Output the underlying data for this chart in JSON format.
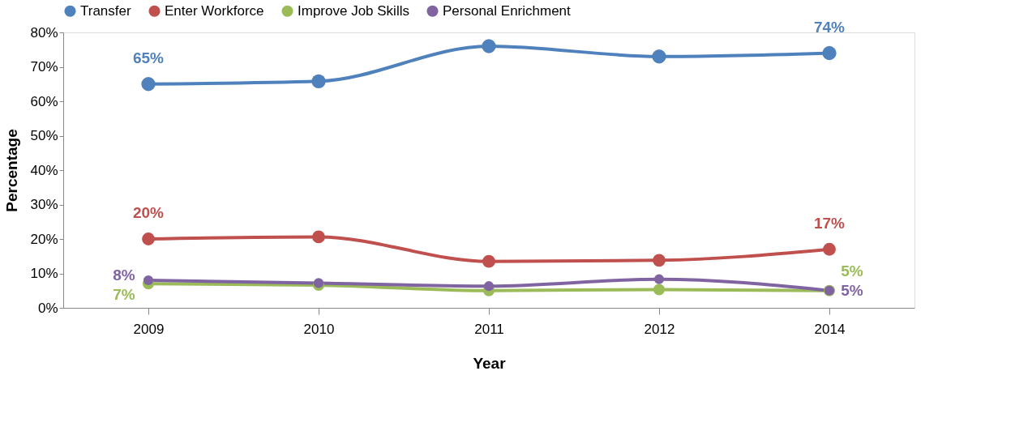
{
  "chart_data": {
    "type": "line",
    "xlabel": "Year",
    "ylabel": "Percentage",
    "categories": [
      "2009",
      "2010",
      "2011",
      "2012",
      "2014"
    ],
    "series": [
      {
        "name": "Transfer",
        "color": "#4f81bd",
        "values": [
          65,
          65.8,
          76,
          73,
          74
        ],
        "value_labels": [
          "65%",
          null,
          null,
          null,
          "74%"
        ]
      },
      {
        "name": "Enter Workforce",
        "color": "#c0504d",
        "values": [
          20,
          20.6,
          13.5,
          13.8,
          17
        ],
        "value_labels": [
          "20%",
          null,
          null,
          null,
          "17%"
        ]
      },
      {
        "name": "Improve Job Skills",
        "color": "#9bbb59",
        "values": [
          7,
          6.6,
          5,
          5.3,
          5
        ],
        "value_labels": [
          "7%",
          null,
          null,
          null,
          "5%"
        ]
      },
      {
        "name": "Personal Enrichment",
        "color": "#8064a2",
        "values": [
          8,
          7.2,
          6.3,
          8.3,
          5
        ],
        "value_labels": [
          "8%",
          null,
          null,
          null,
          "5%"
        ]
      }
    ],
    "ylim": [
      0,
      80
    ],
    "yticks": [
      {
        "value": 0,
        "label": "0%"
      },
      {
        "value": 10,
        "label": "10%"
      },
      {
        "value": 20,
        "label": "20%"
      },
      {
        "value": 30,
        "label": "30%"
      },
      {
        "value": 40,
        "label": "40%"
      },
      {
        "value": 50,
        "label": "50%"
      },
      {
        "value": 60,
        "label": "60%"
      },
      {
        "value": 70,
        "label": "70%"
      },
      {
        "value": 80,
        "label": "80%"
      }
    ],
    "grid": false,
    "legend": "top",
    "marker": "circle",
    "line_style": "solid"
  }
}
